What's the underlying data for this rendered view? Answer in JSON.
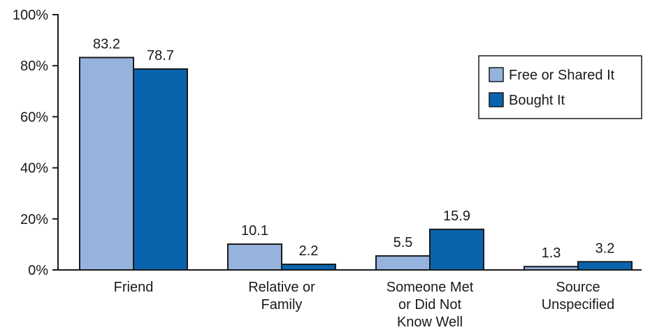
{
  "chart_data": {
    "type": "bar",
    "title": "",
    "xlabel": "",
    "ylabel": "",
    "ylim": [
      0,
      100
    ],
    "yticks": [
      {
        "value": 0,
        "label": "0%"
      },
      {
        "value": 20,
        "label": "20%"
      },
      {
        "value": 40,
        "label": "40%"
      },
      {
        "value": 60,
        "label": "60%"
      },
      {
        "value": 80,
        "label": "80%"
      },
      {
        "value": 100,
        "label": "100%"
      }
    ],
    "categories": [
      [
        "Friend"
      ],
      [
        "Relative or",
        "Family"
      ],
      [
        "Someone Met",
        "or Did Not",
        "Know Well"
      ],
      [
        "Source",
        "Unspecified"
      ]
    ],
    "series": [
      {
        "name": "Free or Shared It",
        "color": "#95b3dd",
        "values": [
          83.2,
          10.1,
          5.5,
          1.3
        ],
        "labels": [
          "83.2",
          "10.1",
          "5.5",
          "1.3"
        ]
      },
      {
        "name": "Bought It",
        "color": "#0a63ad",
        "values": [
          78.7,
          2.2,
          15.9,
          3.2
        ],
        "labels": [
          "78.7",
          "2.2",
          "15.9",
          "3.2"
        ]
      }
    ],
    "grid": false,
    "legend_position": "top-right"
  }
}
